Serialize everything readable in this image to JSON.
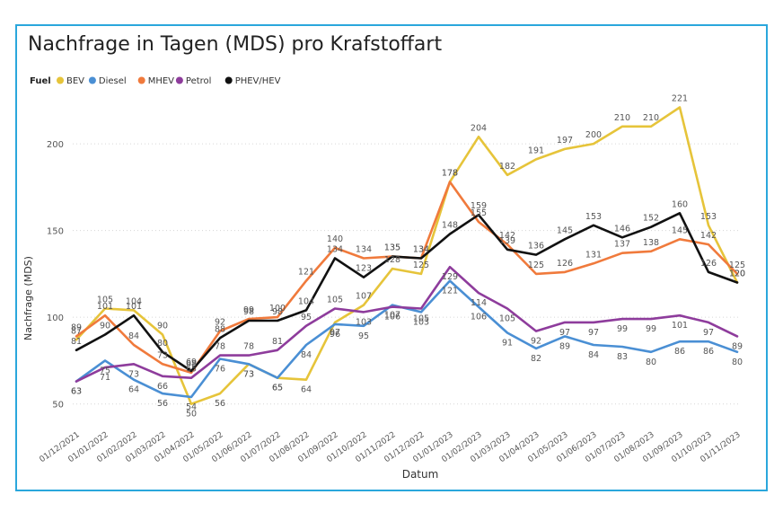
{
  "chart_data": {
    "type": "line",
    "title": "Nachfrage in Tagen (MDS) pro Krafstoffart",
    "xlabel": "Datum",
    "ylabel": "Nachfrage (MDS)",
    "legend_title": "Fuel",
    "legend_position": "top-left",
    "grid": true,
    "ylim": [
      40,
      228
    ],
    "yticks": [
      50,
      100,
      150,
      200
    ],
    "categories": [
      "01/12/2021",
      "01/01/2022",
      "01/02/2022",
      "01/03/2022",
      "01/04/2022",
      "01/05/2022",
      "01/06/2022",
      "01/07/2022",
      "01/08/2022",
      "01/09/2022",
      "01/10/2022",
      "01/11/2022",
      "01/12/2022",
      "01/01/2023",
      "01/02/2023",
      "01/03/2023",
      "01/04/2023",
      "01/05/2023",
      "01/06/2023",
      "01/07/2023",
      "01/08/2023",
      "01/09/2023",
      "01/10/2023",
      "01/11/2023"
    ],
    "series": [
      {
        "name": "BEV",
        "color": "#e6c43a",
        "values": [
          87,
          105,
          104,
          90,
          50,
          56,
          73,
          65,
          64,
          97,
          107,
          128,
          125,
          178,
          204,
          182,
          191,
          197,
          200,
          210,
          210,
          221,
          153,
          120
        ]
      },
      {
        "name": "Diesel",
        "color": "#4a8fd4",
        "values": [
          63,
          75,
          64,
          56,
          54,
          76,
          73,
          65,
          84,
          96,
          95,
          107,
          103,
          121,
          106,
          91,
          82,
          89,
          84,
          83,
          80,
          86,
          86,
          80
        ]
      },
      {
        "name": "MHEV",
        "color": "#f07a3c",
        "values": [
          89,
          101,
          84,
          73,
          68,
          92,
          99,
          100,
          121,
          140,
          134,
          135,
          134,
          178,
          155,
          142,
          125,
          126,
          131,
          137,
          138,
          145,
          142,
          125
        ]
      },
      {
        "name": "Petrol",
        "color": "#8e3c9c",
        "values": [
          63,
          71,
          73,
          66,
          65,
          78,
          78,
          81,
          95,
          105,
          103,
          106,
          105,
          129,
          114,
          105,
          92,
          97,
          97,
          99,
          99,
          101,
          97,
          89
        ]
      },
      {
        "name": "PHEV/HEV",
        "color": "#111111",
        "values": [
          81,
          90,
          101,
          80,
          69,
          88,
          98,
          98,
          104,
          134,
          123,
          135,
          134,
          148,
          159,
          139,
          136,
          145,
          153,
          146,
          152,
          160,
          126,
          120
        ]
      }
    ]
  }
}
